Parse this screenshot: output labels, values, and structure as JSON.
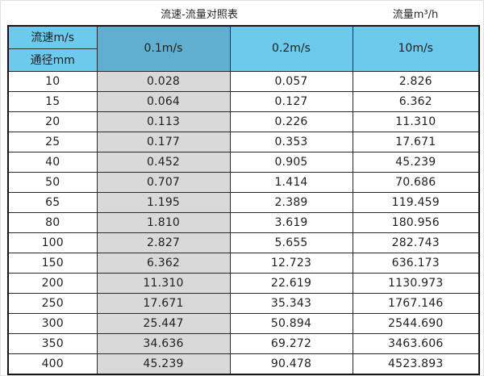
{
  "titles": {
    "main": "流速-流量对照表",
    "flow_unit": "流量m³/h"
  },
  "header": {
    "corner_top": "流速m/s",
    "corner_bottom": "通径mm",
    "columns": [
      "0.1m/s",
      "0.2m/s",
      "10m/s"
    ]
  },
  "colors": {
    "header_blue": "#6ccaec",
    "header_dark_blue": "#60aed0",
    "highlight_column_gray": "#d9d9d9",
    "border_dark": "#2a2a2a",
    "background": "#ffffff"
  },
  "chart_data": {
    "type": "table",
    "title": "流速-流量对照表",
    "unit_label": "流量m³/h",
    "corner_labels": [
      "流速m/s",
      "通径mm"
    ],
    "columns": [
      "通径mm",
      "0.1m/s",
      "0.2m/s",
      "10m/s"
    ],
    "rows": [
      [
        "10",
        "0.028",
        "0.057",
        "2.826"
      ],
      [
        "15",
        "0.064",
        "0.127",
        "6.362"
      ],
      [
        "20",
        "0.113",
        "0.226",
        "11.310"
      ],
      [
        "25",
        "0.177",
        "0.353",
        "17.671"
      ],
      [
        "40",
        "0.452",
        "0.905",
        "45.239"
      ],
      [
        "50",
        "0.707",
        "1.414",
        "70.686"
      ],
      [
        "65",
        "1.195",
        "2.389",
        "119.459"
      ],
      [
        "80",
        "1.810",
        "3.619",
        "180.956"
      ],
      [
        "100",
        "2.827",
        "5.655",
        "282.743"
      ],
      [
        "150",
        "6.362",
        "12.723",
        "636.173"
      ],
      [
        "200",
        "11.310",
        "22.619",
        "1130.973"
      ],
      [
        "250",
        "17.671",
        "35.343",
        "1767.146"
      ],
      [
        "300",
        "25.447",
        "50.894",
        "2544.690"
      ],
      [
        "350",
        "34.636",
        "69.272",
        "3463.606"
      ],
      [
        "400",
        "45.239",
        "90.478",
        "4523.893"
      ]
    ]
  }
}
